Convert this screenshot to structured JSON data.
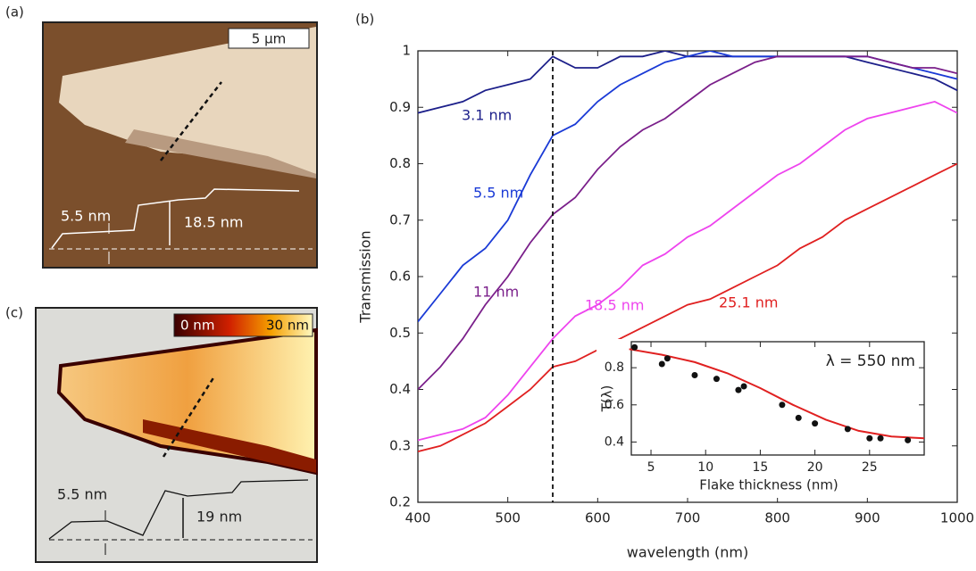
{
  "panels": {
    "a": {
      "label": "(a)",
      "scale_bar": "5 µm",
      "annotations": [
        "5.5 nm",
        "18.5 nm"
      ]
    },
    "b": {
      "label": "(b)"
    },
    "c": {
      "label": "(c)",
      "colorbar": [
        "0 nm",
        "30 nm"
      ],
      "annotations": [
        "5.5 nm",
        "19 nm"
      ]
    }
  },
  "chart_data": [
    {
      "type": "line",
      "x_label": "wavelength (nm)",
      "y_label": "Transmission",
      "x": [
        400,
        425,
        450,
        475,
        500,
        525,
        550,
        575,
        600,
        625,
        650,
        675,
        700,
        725,
        750,
        775,
        800,
        825,
        850,
        875,
        900,
        925,
        950,
        975,
        1000
      ],
      "series": [
        {
          "name": "3.1 nm",
          "color": "#1c1f8a",
          "values": [
            0.89,
            0.9,
            0.91,
            0.93,
            0.94,
            0.95,
            0.99,
            0.97,
            0.97,
            0.99,
            0.99,
            1.0,
            0.99,
            0.99,
            0.99,
            0.99,
            0.99,
            0.99,
            0.99,
            0.99,
            0.98,
            0.97,
            0.96,
            0.95,
            0.93
          ]
        },
        {
          "name": "5.5 nm",
          "color": "#1a3ad6",
          "values": [
            0.52,
            0.57,
            0.62,
            0.65,
            0.7,
            0.78,
            0.85,
            0.87,
            0.91,
            0.94,
            0.96,
            0.98,
            0.99,
            1.0,
            0.99,
            0.99,
            0.99,
            0.99,
            0.99,
            0.99,
            0.99,
            0.98,
            0.97,
            0.96,
            0.95
          ]
        },
        {
          "name": "11 nm",
          "color": "#7a1f8a",
          "values": [
            0.4,
            0.44,
            0.49,
            0.55,
            0.6,
            0.66,
            0.71,
            0.74,
            0.79,
            0.83,
            0.86,
            0.88,
            0.91,
            0.94,
            0.96,
            0.98,
            0.99,
            0.99,
            0.99,
            0.99,
            0.99,
            0.98,
            0.97,
            0.97,
            0.96
          ]
        },
        {
          "name": "18.5 nm",
          "color": "#ee44ee",
          "values": [
            0.31,
            0.32,
            0.33,
            0.35,
            0.39,
            0.44,
            0.49,
            0.53,
            0.55,
            0.58,
            0.62,
            0.64,
            0.67,
            0.69,
            0.72,
            0.75,
            0.78,
            0.8,
            0.83,
            0.86,
            0.88,
            0.89,
            0.9,
            0.91,
            0.89
          ]
        },
        {
          "name": "25.1 nm",
          "color": "#e02020",
          "values": [
            0.29,
            0.3,
            0.32,
            0.34,
            0.37,
            0.4,
            0.44,
            0.45,
            0.47,
            0.49,
            0.51,
            0.53,
            0.55,
            0.56,
            0.58,
            0.6,
            0.62,
            0.65,
            0.67,
            0.7,
            0.72,
            0.74,
            0.76,
            0.78,
            0.8
          ]
        }
      ],
      "vline": 550,
      "xlim": [
        400,
        1000
      ],
      "xticks": [
        400,
        500,
        600,
        700,
        800,
        900,
        1000
      ],
      "ylim": [
        0.2,
        1
      ],
      "yticks": [
        0.2,
        0.3,
        0.4,
        0.5,
        0.6,
        0.7,
        0.8,
        0.9,
        1
      ]
    },
    {
      "type": "scatter",
      "title": "λ = 550 nm",
      "x_label": "Flake thickness (nm)",
      "y_label": "T(λ)",
      "x": [
        3.5,
        6,
        6.5,
        9,
        11,
        13,
        13.5,
        17,
        18.5,
        20,
        23,
        25,
        26,
        28.5
      ],
      "values": [
        0.91,
        0.82,
        0.85,
        0.76,
        0.74,
        0.68,
        0.7,
        0.6,
        0.53,
        0.5,
        0.47,
        0.42,
        0.42,
        0.41
      ],
      "color": "#111111",
      "fit": {
        "color": "#e02020",
        "x": [
          3,
          6,
          9,
          12,
          15,
          18,
          21,
          24,
          27,
          30
        ],
        "values": [
          0.9,
          0.87,
          0.83,
          0.77,
          0.69,
          0.6,
          0.52,
          0.46,
          0.43,
          0.42
        ]
      },
      "xlim": [
        3.2,
        30
      ],
      "xticks": [
        5,
        10,
        15,
        20,
        25
      ],
      "ylim": [
        0.33,
        0.94
      ],
      "yticks": [
        0.4,
        0.6,
        0.8
      ]
    }
  ]
}
